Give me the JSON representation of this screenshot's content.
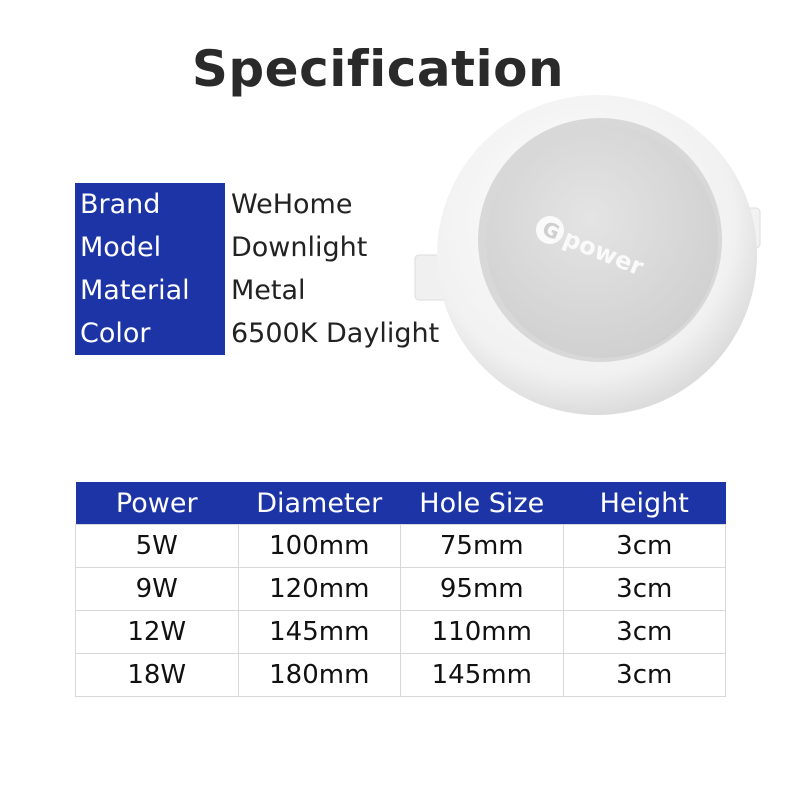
{
  "title": "Specification",
  "specs": [
    {
      "label": "Brand",
      "value": "WeHome"
    },
    {
      "label": "Model",
      "value": "Downlight"
    },
    {
      "label": "Material",
      "value": "Metal"
    },
    {
      "label": "Color",
      "value": "6500K Daylight"
    }
  ],
  "product_logo": "Gpower",
  "size_table": {
    "headers": [
      "Power",
      "Diameter",
      "Hole Size",
      "Height"
    ],
    "rows": [
      [
        "5W",
        "100mm",
        "75mm",
        "3cm"
      ],
      [
        "9W",
        "120mm",
        "95mm",
        "3cm"
      ],
      [
        "12W",
        "145mm",
        "110mm",
        "3cm"
      ],
      [
        "18W",
        "180mm",
        "145mm",
        "3cm"
      ]
    ]
  },
  "colors": {
    "accent": "#1c34a6"
  }
}
